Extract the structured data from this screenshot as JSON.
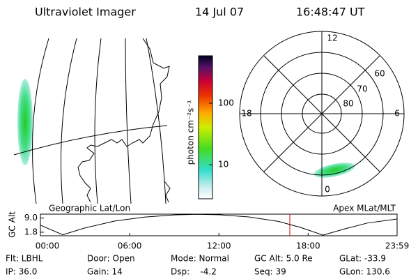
{
  "header": {
    "title": "Ultraviolet Imager",
    "date": "14 Jul 07",
    "time": "16:48:47 UT"
  },
  "colorbar": {
    "label": "photon cm⁻²s⁻¹",
    "zlim": [
      2.8,
      590
    ],
    "log": true,
    "zticks": [
      10,
      100
    ]
  },
  "map": {
    "label": "Geographic Lat/Lon"
  },
  "polar": {
    "label": "Apex MLat/MLT",
    "mlt_labels": [
      "12",
      "18",
      "6",
      "0"
    ],
    "mlat_labels": [
      "60",
      "70",
      "80"
    ]
  },
  "chart_data": {
    "type": "line",
    "y_label": "GC Alt",
    "x": [
      0,
      1.5,
      3,
      5,
      7,
      9,
      10.5,
      12,
      14,
      16,
      17.5,
      19,
      20.5,
      22,
      23.98
    ],
    "series": [
      {
        "color": "#000000",
        "values": [
          5.4,
          0.5,
          4,
          7.5,
          9.5,
          10.6,
          10.9,
          10.7,
          9.6,
          7.3,
          4.2,
          0.3,
          3.6,
          6.5,
          8.5
        ]
      }
    ],
    "xlim": [
      0,
      23.98
    ],
    "ylim": [
      0,
      11
    ],
    "xticks": [
      {
        "value": 0,
        "label": "00:00"
      },
      {
        "value": 6,
        "label": "06:00"
      },
      {
        "value": 12,
        "label": "12:00"
      },
      {
        "value": 18,
        "label": "18:00"
      },
      {
        "value": 23.98,
        "label": "23:59"
      }
    ],
    "yticks": [
      {
        "value": 9,
        "label": "9.0"
      },
      {
        "value": 1.8,
        "label": "1.8"
      }
    ]
  },
  "info": [
    [
      "Flt: LBHL",
      "Door: Open",
      "Mode: Normal",
      "GC Alt: 5.0 Re",
      "GLat: -33.9"
    ],
    [
      "IP: 36.0",
      "Gain: 14",
      "Dsp:    -4.2",
      "Seq: 39",
      "GLon: 130.6"
    ]
  ]
}
